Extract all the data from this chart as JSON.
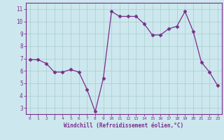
{
  "x": [
    0,
    1,
    2,
    3,
    4,
    5,
    6,
    7,
    8,
    9,
    10,
    11,
    12,
    13,
    14,
    15,
    16,
    17,
    18,
    19,
    20,
    21,
    22,
    23
  ],
  "y": [
    6.9,
    6.9,
    6.6,
    5.9,
    5.9,
    6.1,
    5.9,
    4.5,
    2.7,
    5.4,
    10.8,
    10.4,
    10.4,
    10.4,
    9.8,
    8.9,
    8.9,
    9.4,
    9.6,
    10.8,
    9.2,
    6.7,
    5.9,
    4.8
  ],
  "line_color": "#7b2d8b",
  "marker": "D",
  "marker_size": 2.5,
  "bg_color": "#cce8ee",
  "grid_color": "#aacccc",
  "xlabel": "Windchill (Refroidissement éolien,°C)",
  "xlim": [
    -0.5,
    23.5
  ],
  "ylim": [
    2.5,
    11.5
  ],
  "yticks": [
    3,
    4,
    5,
    6,
    7,
    8,
    9,
    10,
    11
  ],
  "xticks": [
    0,
    1,
    2,
    3,
    4,
    5,
    6,
    7,
    8,
    9,
    10,
    11,
    12,
    13,
    14,
    15,
    16,
    17,
    18,
    19,
    20,
    21,
    22,
    23
  ],
  "tick_color": "#7b2d8b",
  "label_color": "#7b2d8b",
  "axis_color": "#7b2d8b",
  "spine_color": "#7b2d8b"
}
